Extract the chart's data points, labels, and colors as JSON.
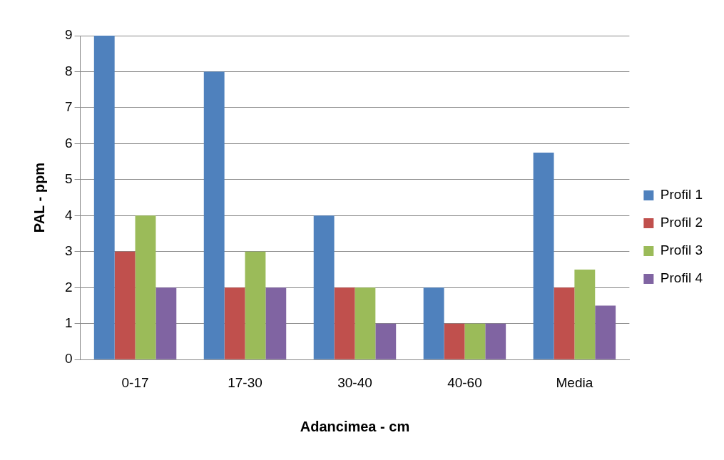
{
  "chart_data": {
    "type": "bar",
    "xlabel": "Adancimea - cm",
    "ylabel": "PAL - ppm",
    "categories": [
      "0-17",
      "17-30",
      "30-40",
      "40-60",
      "Media"
    ],
    "series": [
      {
        "name": "Profil 1",
        "color": "#4f81bd",
        "values": [
          9,
          8,
          4,
          2,
          5.75
        ]
      },
      {
        "name": "Profil 2",
        "color": "#c0504d",
        "values": [
          3,
          2,
          2,
          1,
          2
        ]
      },
      {
        "name": "Profil 3",
        "color": "#9bbb59",
        "values": [
          4,
          3,
          2,
          1,
          2.5
        ]
      },
      {
        "name": "Profil 4",
        "color": "#8064a2",
        "values": [
          2,
          2,
          1,
          1,
          1.5
        ]
      }
    ],
    "ylim": [
      0,
      9
    ],
    "yticks": [
      0,
      1,
      2,
      3,
      4,
      5,
      6,
      7,
      8,
      9
    ],
    "grid": "y",
    "legend": "right"
  }
}
